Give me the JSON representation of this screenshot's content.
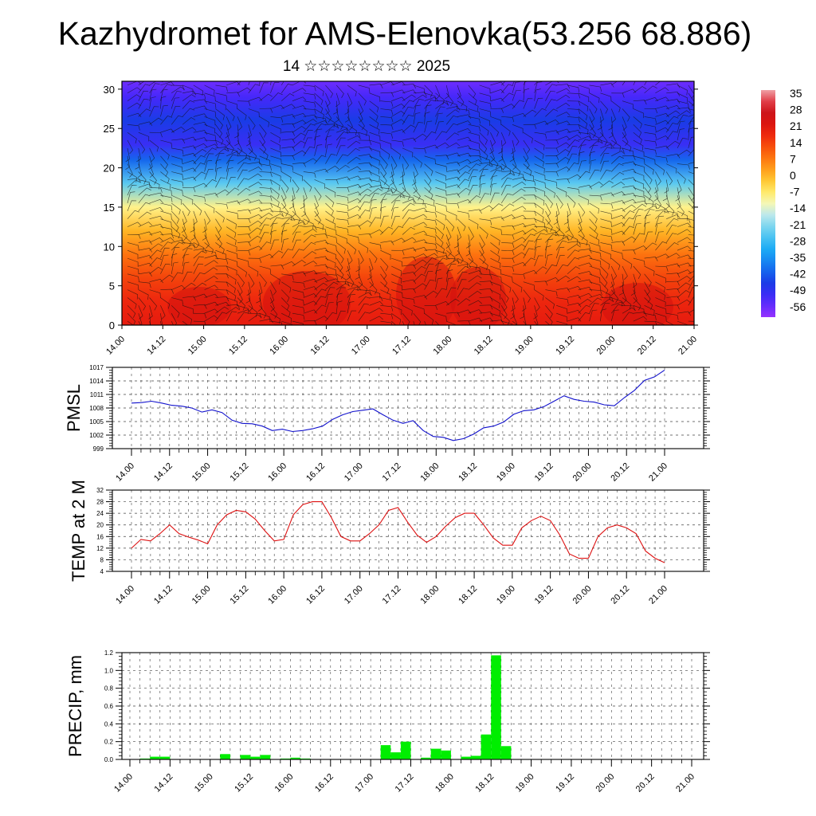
{
  "title": "Kazhydromet for AMS-Elenovka(53.256 68.886)",
  "subtitle": "14 ☆☆☆☆☆☆☆☆ 2025",
  "chart_data": [
    {
      "type": "heatmap",
      "ylim": [
        0,
        31
      ],
      "y_ticks": [
        "0",
        "5",
        "10",
        "15",
        "20",
        "25",
        "30"
      ],
      "x_ticks": [
        "14.00",
        "14.12",
        "15.00",
        "15.12",
        "16.00",
        "16.12",
        "17.00",
        "17.12",
        "18.00",
        "18.12",
        "19.00",
        "19.12",
        "20.00",
        "20.12",
        "21.00"
      ],
      "colorbar": {
        "labels": [
          "35",
          "28",
          "21",
          "14",
          "7",
          "0",
          "-7",
          "-14",
          "-21",
          "-28",
          "-35",
          "-42",
          "-49",
          "-56"
        ],
        "range": [
          -60,
          38
        ]
      },
      "temperature_profile": {
        "heights": [
          0,
          3,
          6,
          9,
          12,
          15,
          18,
          21,
          23,
          26,
          29,
          31
        ],
        "values": [
          21,
          19,
          15,
          9,
          1,
          -8,
          -24,
          -40,
          -50,
          -45,
          -52,
          -56
        ]
      },
      "grid": false
    },
    {
      "type": "line",
      "ylabel": "PMSL",
      "ylim": [
        999,
        1017
      ],
      "y_ticks": [
        "999",
        "1002",
        "1005",
        "1008",
        "1011",
        "1014",
        "1017"
      ],
      "x_ticks": [
        "14.00",
        "14.12",
        "15.00",
        "15.12",
        "16.00",
        "16.12",
        "17.00",
        "17.12",
        "18.00",
        "18.12",
        "19.00",
        "19.12",
        "20.00",
        "20.12",
        "21.00"
      ],
      "series": [
        {
          "color": "#1010cc",
          "values": [
            1009.1,
            1009.2,
            1009.5,
            1009.1,
            1008.6,
            1008.4,
            1008.0,
            1007.1,
            1007.6,
            1007.0,
            1005.3,
            1004.6,
            1004.5,
            1004.0,
            1003.0,
            1003.3,
            1002.8,
            1003.0,
            1003.4,
            1004.0,
            1005.5,
            1006.5,
            1007.2,
            1007.5,
            1007.8,
            1006.5,
            1005.3,
            1004.6,
            1005.2,
            1003.0,
            1001.7,
            1001.5,
            1000.8,
            1001.2,
            1002.2,
            1003.6,
            1004.0,
            1004.9,
            1006.6,
            1007.4,
            1007.6,
            1008.3,
            1009.5,
            1010.7,
            1009.9,
            1009.5,
            1009.3,
            1008.7,
            1008.5,
            1010.3,
            1011.9,
            1014.1,
            1014.9,
            1016.4
          ]
        }
      ],
      "grid": true
    },
    {
      "type": "line",
      "ylabel": "TEMP at 2 M",
      "ylim": [
        4,
        32
      ],
      "y_ticks": [
        "4",
        "8",
        "12",
        "16",
        "20",
        "24",
        "28",
        "32"
      ],
      "x_ticks": [
        "14.00",
        "14.12",
        "15.00",
        "15.12",
        "16.00",
        "16.12",
        "17.00",
        "17.12",
        "18.00",
        "18.12",
        "19.00",
        "19.12",
        "20.00",
        "20.12",
        "21.00"
      ],
      "series": [
        {
          "color": "#dd1010",
          "values": [
            12,
            15,
            14.5,
            17,
            20,
            17,
            15.8,
            14.8,
            13.5,
            20,
            23.5,
            25,
            24.5,
            22,
            18,
            14.5,
            15,
            23.5,
            27,
            28,
            28,
            22.5,
            16,
            14.5,
            14.5,
            17,
            20,
            25,
            26,
            21,
            16.5,
            14,
            16,
            19.5,
            22.5,
            24,
            24,
            20,
            15.5,
            13,
            13,
            19,
            21.5,
            23,
            21.5,
            16.5,
            10,
            8.5,
            8.5,
            16,
            19,
            20,
            19,
            17,
            11,
            8.5,
            7
          ]
        }
      ],
      "grid": true
    },
    {
      "type": "bar",
      "ylabel": "PRECIP, mm",
      "ylim": [
        0,
        1.2
      ],
      "y_ticks": [
        "0.0",
        "0.2",
        "0.4",
        "0.6",
        "0.8",
        "1.0",
        "1.2"
      ],
      "x_ticks": [
        "14.00",
        "14.12",
        "15.00",
        "15.12",
        "16.00",
        "16.12",
        "17.00",
        "17.12",
        "18.00",
        "18.12",
        "19.00",
        "19.12",
        "20.00",
        "20.12",
        "21.00"
      ],
      "series": [
        {
          "color": "#00ee00",
          "bar_start_hour": 3,
          "bar_step_hours": 3,
          "values": [
            0,
            0.01,
            0.03,
            0.03,
            0,
            0,
            0,
            0,
            0,
            0.06,
            0,
            0.05,
            0.03,
            0.05,
            0,
            0.01,
            0.02,
            0.01,
            0,
            0,
            0,
            0,
            0,
            0,
            0,
            0.16,
            0.08,
            0.2,
            0,
            0.02,
            0.12,
            0.1,
            0,
            0.03,
            0.04,
            0.28,
            1.17,
            0.15,
            0,
            0,
            0,
            0,
            0,
            0,
            0,
            0,
            0,
            0,
            0,
            0,
            0,
            0,
            0,
            0,
            0,
            0
          ]
        }
      ],
      "grid": true
    }
  ]
}
